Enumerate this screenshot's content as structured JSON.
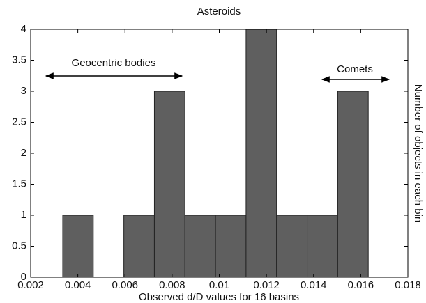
{
  "chart_data": {
    "type": "histogram",
    "title": "Asteroids",
    "xlabel": "Observed d/D values for 16 basins",
    "ylabel": "Number of objects in each bin",
    "bins": [
      0.00336,
      0.004656,
      0.005952,
      0.007248,
      0.008544,
      0.00984,
      0.011136,
      0.012432,
      0.013728,
      0.015024,
      0.01632
    ],
    "counts": [
      1,
      0,
      1,
      3,
      1,
      1,
      4,
      1,
      1,
      3
    ],
    "color": "#5f5f5f",
    "xlim": [
      0.002,
      0.018
    ],
    "xticks": [
      0.002,
      0.004,
      0.006,
      0.008,
      0.01,
      0.012,
      0.014,
      0.016,
      0.018
    ],
    "ylim": [
      0,
      4
    ],
    "yticks": [
      0,
      0.5,
      1,
      1.5,
      2,
      2.5,
      3,
      3.5,
      4
    ],
    "annotations": [
      "Geocentric bodies",
      "Comets"
    ]
  }
}
